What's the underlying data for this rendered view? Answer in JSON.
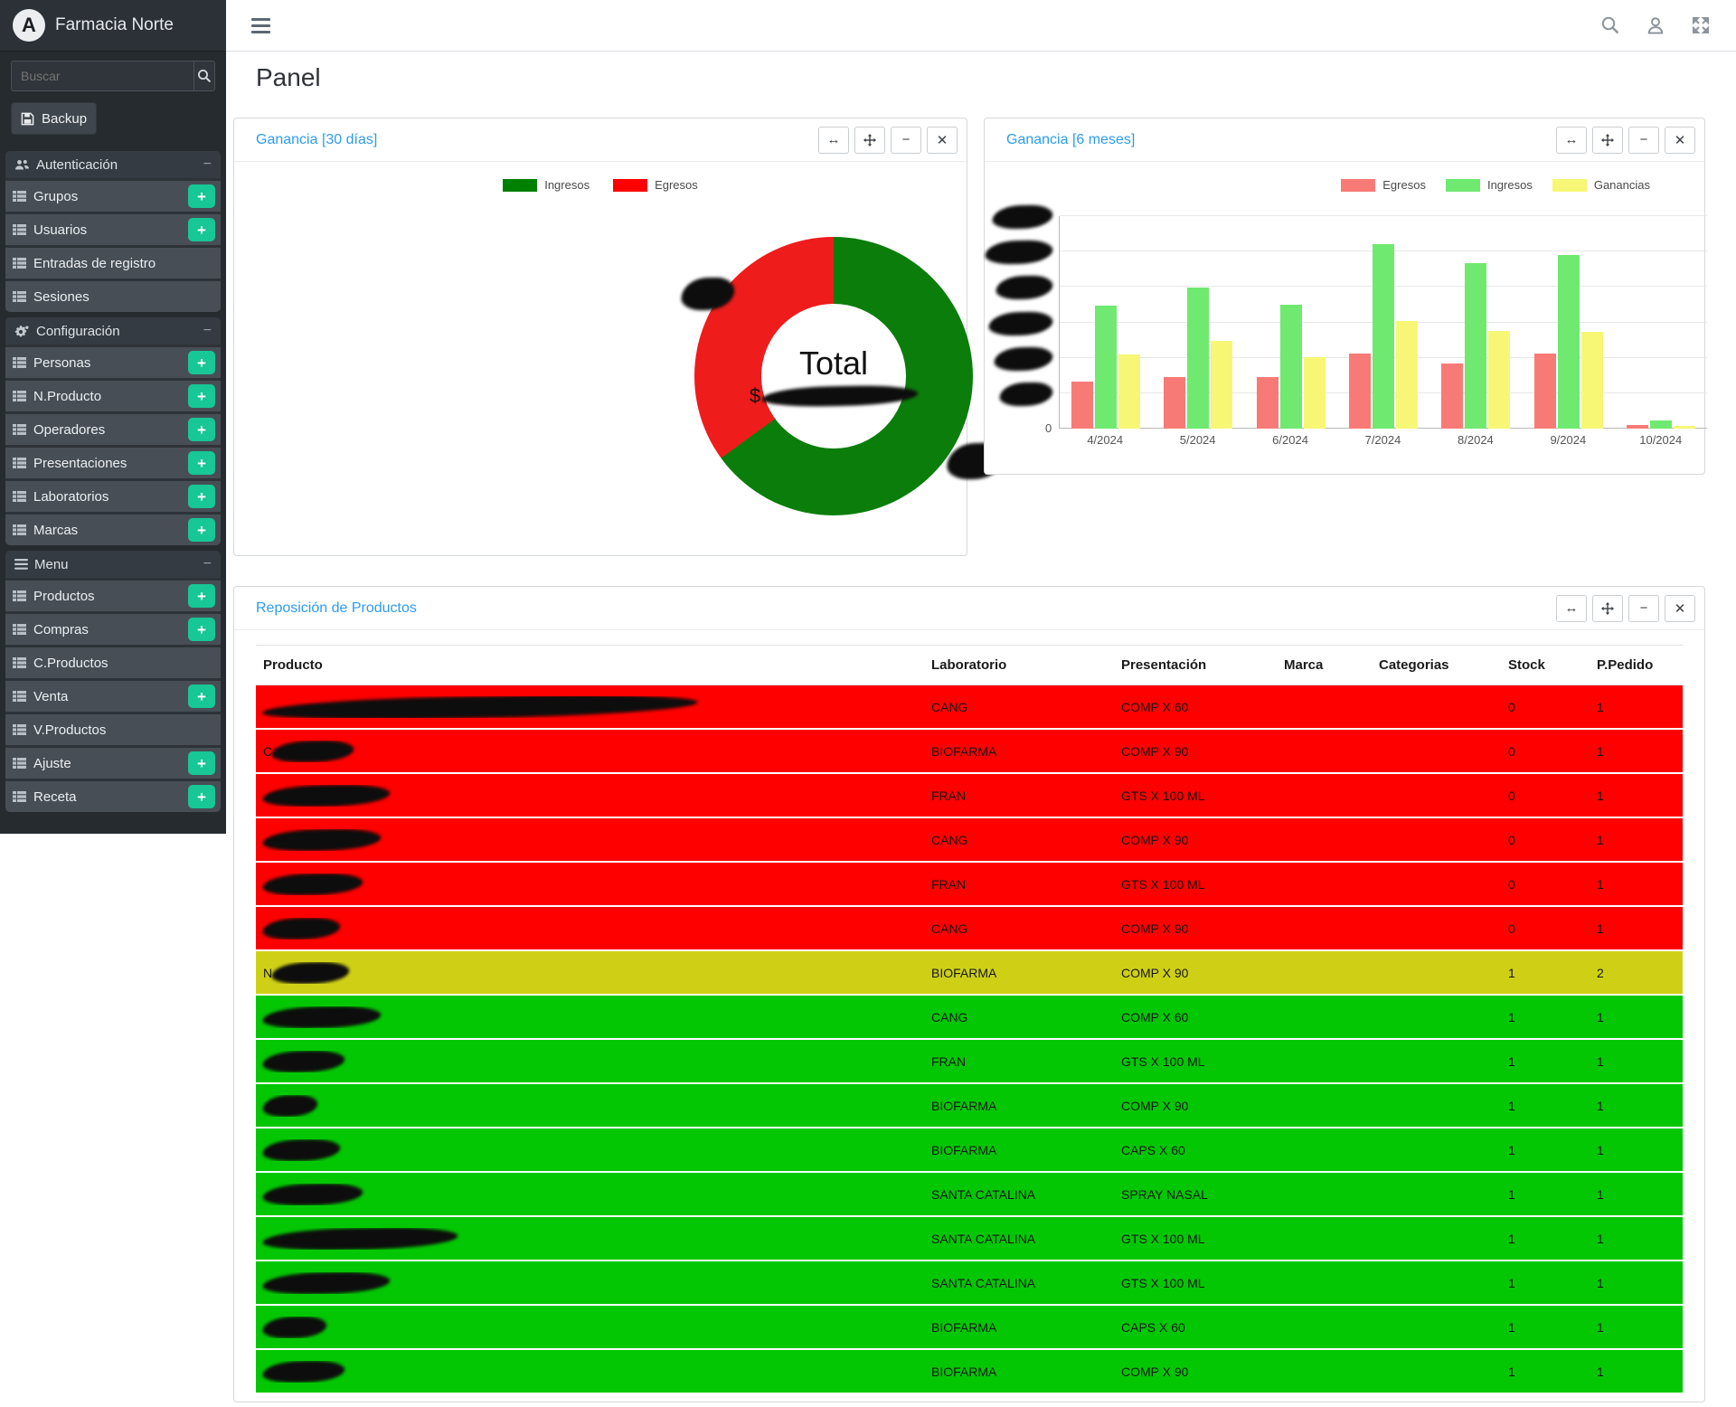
{
  "brand": {
    "title": "Farmacia Norte",
    "logo_letter": "A"
  },
  "sidebar": {
    "search_placeholder": "Buscar",
    "backup_label": "Backup",
    "sections": [
      {
        "label": "Autenticación",
        "icon": "users-icon",
        "items": [
          {
            "label": "Grupos",
            "plus": true
          },
          {
            "label": "Usuarios",
            "plus": true
          },
          {
            "label": "Entradas de registro",
            "plus": false
          },
          {
            "label": "Sesiones",
            "plus": false
          }
        ]
      },
      {
        "label": "Configuración",
        "icon": "gears-icon",
        "items": [
          {
            "label": "Personas",
            "plus": true
          },
          {
            "label": "N.Producto",
            "plus": true
          },
          {
            "label": "Operadores",
            "plus": true
          },
          {
            "label": "Presentaciones",
            "plus": true
          },
          {
            "label": "Laboratorios",
            "plus": true
          },
          {
            "label": "Marcas",
            "plus": true
          }
        ]
      },
      {
        "label": "Menu",
        "icon": "menu-icon",
        "items": [
          {
            "label": "Productos",
            "plus": true
          },
          {
            "label": "Compras",
            "plus": true
          },
          {
            "label": "C.Productos",
            "plus": false
          },
          {
            "label": "Venta",
            "plus": true
          },
          {
            "label": "V.Productos",
            "plus": false
          },
          {
            "label": "Ajuste",
            "plus": true
          },
          {
            "label": "Receta",
            "plus": true
          }
        ]
      }
    ]
  },
  "page": {
    "title": "Panel"
  },
  "panels": {
    "donut_title": "Ganancia [30 días]",
    "bars_title": "Ganancia [6 meses]",
    "table_title": "Reposición de Productos"
  },
  "chart_data": [
    {
      "type": "pie",
      "title": "Ganancia [30 días]",
      "legend": [
        "Ingresos",
        "Egresos"
      ],
      "legend_position": "top",
      "center_label": "Total",
      "center_value_prefix": "$",
      "center_value_redacted": true,
      "outer_labels_redacted": true,
      "slices": [
        {
          "name": "Ingresos",
          "percent": 65,
          "color": "#0b7d0b"
        },
        {
          "name": "Egresos",
          "percent": 35,
          "color": "#ef1c1c"
        }
      ]
    },
    {
      "type": "bar",
      "title": "Ganancia [6 meses]",
      "categories": [
        "4/2024",
        "5/2024",
        "6/2024",
        "7/2024",
        "8/2024",
        "9/2024",
        "10/2024"
      ],
      "series": [
        {
          "name": "Egresos",
          "color": "#f87a76",
          "values": [
            0.66,
            0.73,
            0.73,
            1.06,
            0.92,
            1.06,
            0.05
          ]
        },
        {
          "name": "Ingresos",
          "color": "#6fe96f",
          "values": [
            1.74,
            1.99,
            1.75,
            2.6,
            2.34,
            2.45,
            0.12
          ]
        },
        {
          "name": "Ganancias",
          "color": "#f7f775",
          "values": [
            1.05,
            1.24,
            1.01,
            1.52,
            1.38,
            1.37,
            0.04
          ]
        }
      ],
      "ylim": [
        0,
        3
      ],
      "y_tick_step": 0.5,
      "y_axis_zero_label": "0",
      "y_axis_labels_redacted": true,
      "units": "currency (scale labels redacted, approx millions)",
      "grid": true,
      "legend_position": "top"
    }
  ],
  "table": {
    "headers": [
      "Producto",
      "Laboratorio",
      "Presentación",
      "Marca",
      "Categorias",
      "Stock",
      "P.Pedido"
    ],
    "status_colors": {
      "out": "#fe0000",
      "low": "#cfd016",
      "ok": "#03c703"
    },
    "rows": [
      {
        "status": "out",
        "product_redacted": true,
        "prefix": "",
        "redact_w": 480,
        "laboratorio": "CANG",
        "presentacion": "COMP X 60",
        "marca": "",
        "categorias": "",
        "stock": "0",
        "pedido": "1"
      },
      {
        "status": "out",
        "product_redacted": true,
        "prefix": "C",
        "redact_w": 90,
        "laboratorio": "BIOFARMA",
        "presentacion": "COMP X 90",
        "marca": "",
        "categorias": "",
        "stock": "0",
        "pedido": "1"
      },
      {
        "status": "out",
        "product_redacted": true,
        "prefix": "",
        "redact_w": 140,
        "laboratorio": "FRAN",
        "presentacion": "GTS X 100 ML",
        "marca": "",
        "categorias": "",
        "stock": "0",
        "pedido": "1"
      },
      {
        "status": "out",
        "product_redacted": true,
        "prefix": "",
        "redact_w": 130,
        "laboratorio": "CANG",
        "presentacion": "COMP X 90",
        "marca": "",
        "categorias": "",
        "stock": "0",
        "pedido": "1"
      },
      {
        "status": "out",
        "product_redacted": true,
        "prefix": "",
        "redact_w": 110,
        "laboratorio": "FRAN",
        "presentacion": "GTS X 100 ML",
        "marca": "",
        "categorias": "",
        "stock": "0",
        "pedido": "1"
      },
      {
        "status": "out",
        "product_redacted": true,
        "prefix": "",
        "redact_w": 85,
        "laboratorio": "CANG",
        "presentacion": "COMP X 90",
        "marca": "",
        "categorias": "",
        "stock": "0",
        "pedido": "1"
      },
      {
        "status": "low",
        "product_redacted": true,
        "prefix": "N",
        "redact_w": 85,
        "laboratorio": "BIOFARMA",
        "presentacion": "COMP X 90",
        "marca": "",
        "categorias": "",
        "stock": "1",
        "pedido": "2"
      },
      {
        "status": "ok",
        "product_redacted": true,
        "prefix": "",
        "redact_w": 130,
        "laboratorio": "CANG",
        "presentacion": "COMP X 60",
        "marca": "",
        "categorias": "",
        "stock": "1",
        "pedido": "1"
      },
      {
        "status": "ok",
        "product_redacted": true,
        "prefix": "",
        "redact_w": 90,
        "laboratorio": "FRAN",
        "presentacion": "GTS X 100 ML",
        "marca": "",
        "categorias": "",
        "stock": "1",
        "pedido": "1"
      },
      {
        "status": "ok",
        "product_redacted": true,
        "prefix": "",
        "redact_w": 60,
        "laboratorio": "BIOFARMA",
        "presentacion": "COMP X 90",
        "marca": "",
        "categorias": "",
        "stock": "1",
        "pedido": "1"
      },
      {
        "status": "ok",
        "product_redacted": true,
        "prefix": "",
        "redact_w": 85,
        "laboratorio": "BIOFARMA",
        "presentacion": "CAPS X 60",
        "marca": "",
        "categorias": "",
        "stock": "1",
        "pedido": "1"
      },
      {
        "status": "ok",
        "product_redacted": true,
        "prefix": "",
        "redact_w": 110,
        "laboratorio": "SANTA CATALINA",
        "presentacion": "SPRAY NASAL",
        "marca": "",
        "categorias": "",
        "stock": "1",
        "pedido": "1"
      },
      {
        "status": "ok",
        "product_redacted": true,
        "prefix": "",
        "redact_w": 215,
        "laboratorio": "SANTA CATALINA",
        "presentacion": "GTS X 100 ML",
        "marca": "",
        "categorias": "",
        "stock": "1",
        "pedido": "1"
      },
      {
        "status": "ok",
        "product_redacted": true,
        "prefix": "",
        "redact_w": 140,
        "laboratorio": "SANTA CATALINA",
        "presentacion": "GTS X 100 ML",
        "marca": "",
        "categorias": "",
        "stock": "1",
        "pedido": "1"
      },
      {
        "status": "ok",
        "product_redacted": true,
        "prefix": "",
        "redact_w": 70,
        "laboratorio": "BIOFARMA",
        "presentacion": "CAPS X 60",
        "marca": "",
        "categorias": "",
        "stock": "1",
        "pedido": "1"
      },
      {
        "status": "ok",
        "product_redacted": true,
        "prefix": "",
        "redact_w": 90,
        "laboratorio": "BIOFARMA",
        "presentacion": "COMP X 90",
        "marca": "",
        "categorias": "",
        "stock": "1",
        "pedido": "1"
      }
    ]
  },
  "colors": {
    "accent_blue": "#2d9cf0",
    "plus_teal": "#17c796"
  }
}
